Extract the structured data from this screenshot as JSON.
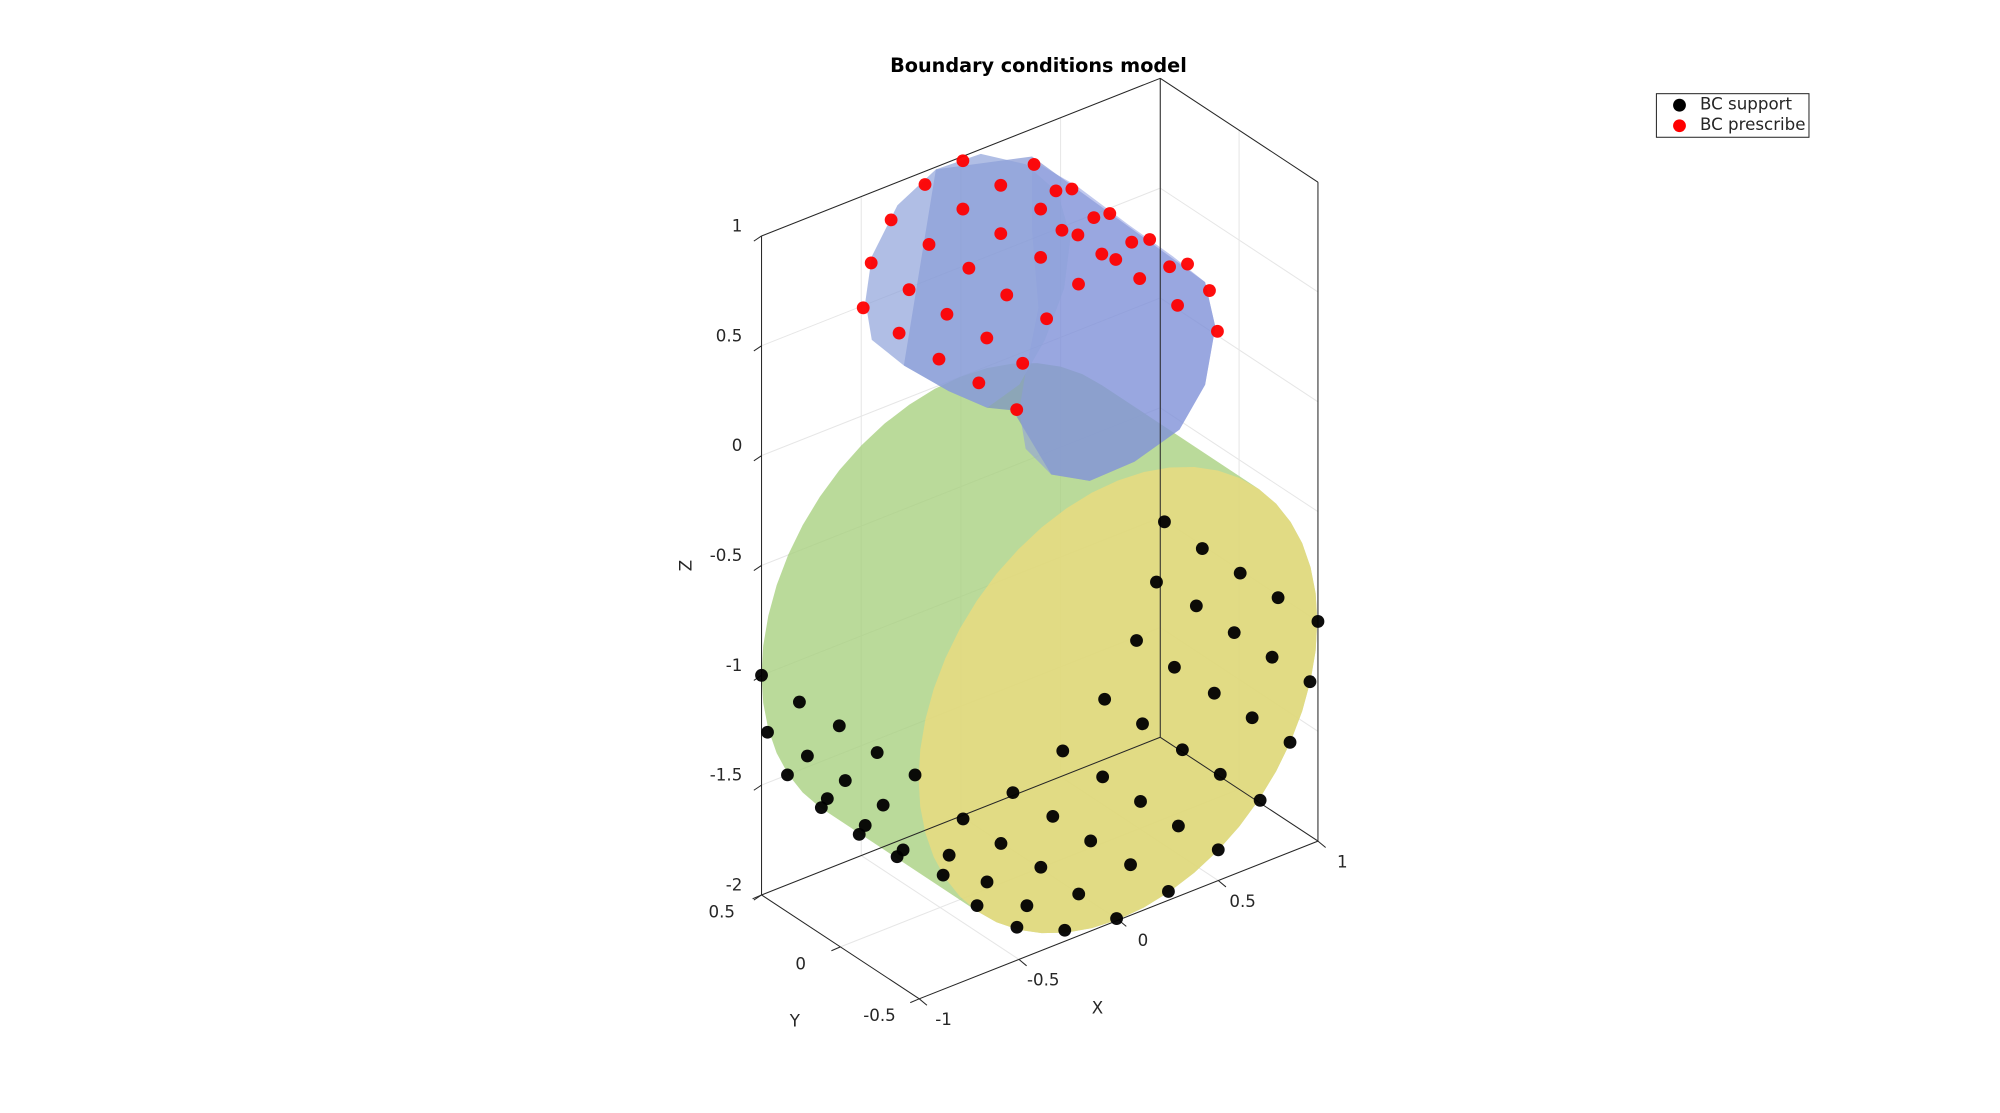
{
  "chart_data": {
    "type": "scatter3d",
    "title": "Boundary conditions model",
    "xlabel": "X",
    "ylabel": "Y",
    "zlabel": "Z",
    "xlim": [
      -1,
      1
    ],
    "ylim": [
      -0.5,
      0.5
    ],
    "zlim": [
      -2,
      1
    ],
    "xticks": [
      -1,
      -0.5,
      0,
      0.5,
      1
    ],
    "yticks": [
      -0.5,
      0,
      0.5
    ],
    "zticks": [
      -2,
      -1.5,
      -1,
      -0.5,
      0,
      0.5,
      1
    ],
    "grid": true,
    "legend": "upper right",
    "series": [
      {
        "name": "BC support",
        "color": "#000000",
        "x": [
          0.23,
          0.42,
          0.61,
          0.8,
          1,
          0.19,
          0.39,
          0.58,
          0.77,
          0.96,
          0.09,
          0.28,
          0.48,
          0.67,
          0.86,
          -0.07,
          0.12,
          0.32,
          0.51,
          0.71,
          -0.28,
          -0.08,
          0.11,
          0.3,
          0.5,
          -0.53,
          -0.33,
          -0.14,
          0.06,
          0.25,
          -0.78,
          -0.59,
          -0.39,
          -0.2,
          -0.01,
          -0.85,
          -0.66,
          -0.46,
          -0.27,
          -0.88,
          -0.71,
          -0.51,
          -1,
          -0.97,
          -0.87,
          -0.7,
          -0.51,
          -0.32,
          -0.81,
          -0.61,
          -0.42,
          -0.23,
          -0.77,
          -0.58,
          -0.39,
          -0.67,
          -0.48,
          -0.29
        ],
        "y": [
          -0.5,
          -0.5,
          -0.5,
          -0.5,
          -0.5,
          -0.5,
          -0.5,
          -0.5,
          -0.5,
          -0.5,
          -0.5,
          -0.5,
          -0.5,
          -0.5,
          -0.5,
          -0.5,
          -0.5,
          -0.5,
          -0.5,
          -0.5,
          -0.5,
          -0.5,
          -0.5,
          -0.5,
          -0.5,
          -0.5,
          -0.5,
          -0.5,
          -0.5,
          -0.5,
          -0.5,
          -0.5,
          -0.5,
          -0.5,
          -0.5,
          -0.5,
          -0.5,
          -0.5,
          -0.5,
          -0.5,
          -0.5,
          -0.5,
          0.5,
          0.5,
          0.5,
          0.5,
          0.5,
          0.5,
          0.5,
          0.5,
          0.5,
          0.5,
          0.5,
          0.5,
          0.5,
          0.5,
          0.5,
          0.5
        ],
        "z": [
          -0.27,
          -0.46,
          -0.64,
          -0.82,
          -1,
          -0.53,
          -0.71,
          -0.9,
          -1.08,
          -1.26,
          -0.76,
          -0.95,
          -1.14,
          -1.32,
          -1.5,
          -0.97,
          -1.15,
          -1.34,
          -1.52,
          -1.71,
          -1.13,
          -1.32,
          -1.5,
          -1.68,
          -1.86,
          -1.23,
          -1.41,
          -1.59,
          -1.77,
          -1.96,
          -1.26,
          -1.44,
          -1.62,
          -1.81,
          -1.99,
          -1.4,
          -1.59,
          -1.77,
          -1.95,
          -1.48,
          -1.68,
          -1.85,
          -1,
          -1.27,
          -1.5,
          -1.71,
          -1.9,
          -2.07,
          -1.19,
          -1.37,
          -1.56,
          -1.73,
          -1.45,
          -1.63,
          -1.81,
          -1.68,
          -1.87,
          -2.05
        ]
      },
      {
        "name": "BC prescribe",
        "color": "#ff0000",
        "x": [
          0.01,
          -0.18,
          -0.35,
          -0.45,
          -0.49,
          0.2,
          0.01,
          -0.16,
          -0.26,
          -0.31,
          0.2,
          0.04,
          -0.07,
          -0.11,
          0.4,
          0.4,
          0.23,
          0.13,
          0.09,
          0.43,
          0.31,
          0.28,
          0.59,
          0.09,
          0.28,
          0.47,
          0.67,
          0.86,
          0.97,
          1.01,
          0.81,
          0.62,
          0.43,
          0.23,
          0.2,
          0.39,
          0.58,
          0.77,
          0.5,
          0.31
        ],
        "y": [
          0.5,
          0.5,
          0.5,
          0.5,
          0.5,
          0.5,
          0.5,
          0.5,
          0.5,
          0.5,
          0.5,
          0.5,
          0.5,
          0.5,
          0.5,
          0.5,
          0.5,
          0.5,
          0.5,
          0.5,
          0.5,
          0.5,
          0.5,
          0.15,
          0.15,
          0.15,
          0.15,
          0.15,
          0.15,
          0.15,
          0.15,
          0.15,
          0.15,
          0.15,
          0.15,
          0.15,
          0.15,
          0.15,
          0.15,
          0.15
        ],
        "z": [
          0.98,
          0.94,
          0.84,
          0.68,
          0.49,
          0.8,
          0.76,
          0.66,
          0.49,
          0.31,
          0.58,
          0.48,
          0.31,
          0.12,
          0.62,
          0.4,
          0.29,
          0.13,
          -0.06,
          0.11,
          -0.05,
          -0.25,
          0.21,
          1.1,
          0.92,
          0.74,
          0.55,
          0.37,
          0.21,
          0.01,
          0.2,
          0.39,
          0.57,
          0.75,
          0.94,
          0.75,
          0.57,
          0.39,
          0.52,
          0.7
        ]
      }
    ]
  }
}
